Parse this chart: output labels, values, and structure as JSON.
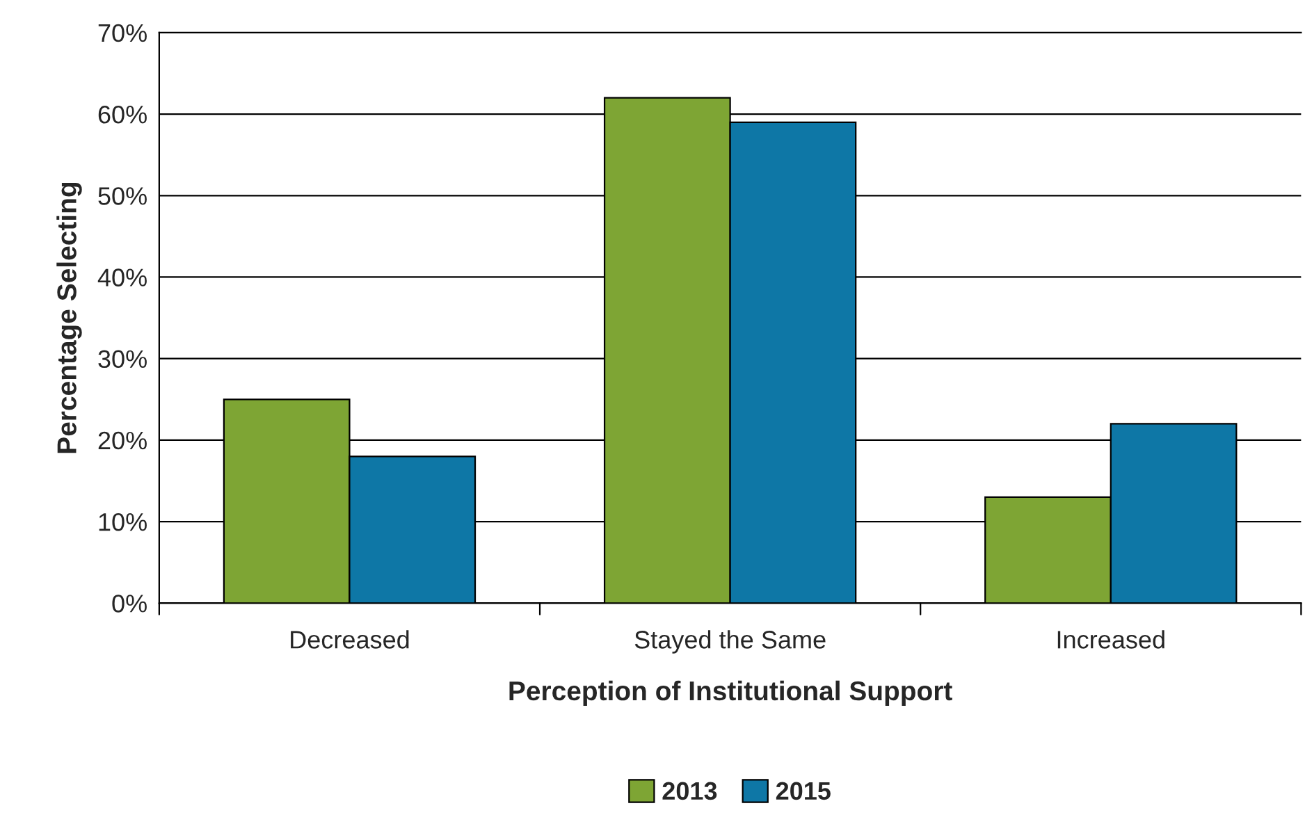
{
  "chart_data": {
    "type": "bar",
    "xlabel": "Perception of Institutional Support",
    "ylabel": "Percentage Selecting",
    "categories": [
      "Decreased",
      "Stayed the Same",
      "Increased"
    ],
    "series": [
      {
        "name": "2013",
        "color": "#7ea534",
        "values": [
          25,
          62,
          13
        ]
      },
      {
        "name": "2015",
        "color": "#0e77a6",
        "values": [
          18,
          59,
          22
        ]
      }
    ],
    "ylim": [
      0,
      70
    ],
    "yticks": [
      {
        "value": 0,
        "label": "0%"
      },
      {
        "value": 10,
        "label": "10%"
      },
      {
        "value": 20,
        "label": "20%"
      },
      {
        "value": 30,
        "label": "30%"
      },
      {
        "value": 40,
        "label": "40%"
      },
      {
        "value": 50,
        "label": "50%"
      },
      {
        "value": 60,
        "label": "60%"
      },
      {
        "value": 70,
        "label": "70%"
      }
    ],
    "grid": "y",
    "legend": "bottom"
  }
}
